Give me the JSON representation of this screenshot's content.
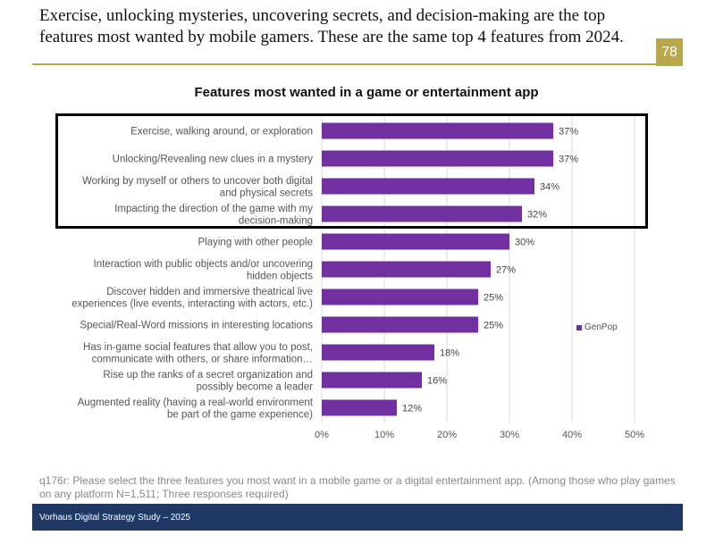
{
  "slide": {
    "title": "Exercise, unlocking mysteries, uncovering secrets, and decision-making are the top features most wanted by mobile gamers. These are the same top 4 features from 2024.",
    "page_number": "78",
    "footnote": "q176r: Please select the three features you most want in a mobile game or a digital entertainment app. (Among those who play games on any platform N=1,511; Three responses required)",
    "footer": "Vorhaus Digital Strategy Study – 2025"
  },
  "colors": {
    "bar": "#7030a0",
    "accent": "#b9a84a",
    "footer_bg": "#1f3864"
  },
  "chart_data": {
    "type": "bar",
    "orientation": "horizontal",
    "title": "Features most wanted in a game or entertainment app",
    "categories": [
      [
        "Exercise, walking around, or exploration"
      ],
      [
        "Unlocking/Revealing new clues in a mystery"
      ],
      [
        "Working by myself or others to uncover both digital",
        "and physical secrets"
      ],
      [
        "Impacting the direction of the game with my",
        "decision-making"
      ],
      [
        "Playing with other people"
      ],
      [
        "Interaction with public objects and/or uncovering",
        "hidden objects"
      ],
      [
        "Discover hidden and immersive theatrical live",
        "experiences (live events, interacting with actors, etc.)"
      ],
      [
        "Special/Real-Word missions in interesting locations"
      ],
      [
        "Has in-game social features that allow you to post,",
        "communicate with others, or share information…"
      ],
      [
        "Rise up the ranks of a secret organization and",
        "possibly become a leader"
      ],
      [
        "Augmented reality (having a real-world environment",
        "be part of the game experience)"
      ]
    ],
    "series": [
      {
        "name": "GenPop",
        "values": [
          37,
          37,
          34,
          32,
          30,
          27,
          25,
          25,
          18,
          16,
          12
        ],
        "labels": [
          "37%",
          "37%",
          "34%",
          "32%",
          "30%",
          "27%",
          "25%",
          "25%",
          "18%",
          "16%",
          "12%"
        ]
      }
    ],
    "xlim": [
      0,
      50
    ],
    "xticks": [
      0,
      10,
      20,
      30,
      40,
      50
    ],
    "xtick_labels": [
      "0%",
      "10%",
      "20%",
      "30%",
      "40%",
      "50%"
    ],
    "grid": true,
    "legend": "right",
    "highlighted_categories": [
      0,
      1,
      2,
      3
    ]
  }
}
